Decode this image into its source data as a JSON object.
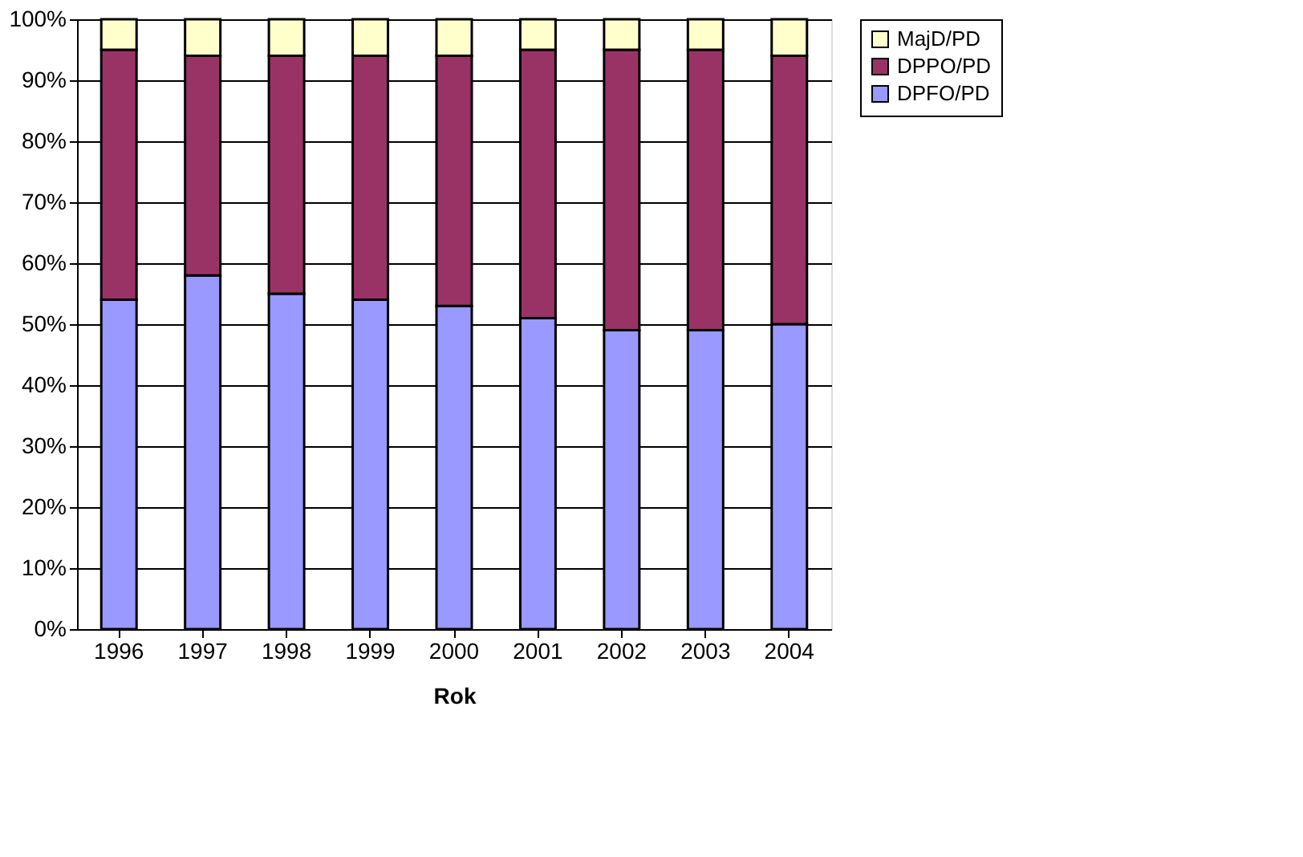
{
  "chart_data": {
    "type": "bar",
    "stacked": true,
    "xlabel": "Rok",
    "categories": [
      "1996",
      "1997",
      "1998",
      "1999",
      "2000",
      "2001",
      "2002",
      "2003",
      "2004"
    ],
    "series": [
      {
        "name": "DPFO/PD",
        "color": "#9999ff",
        "values": [
          54,
          58,
          55,
          54,
          53,
          51,
          49,
          49,
          50
        ]
      },
      {
        "name": "DPPO/PD",
        "color": "#993366",
        "values": [
          41,
          36,
          39,
          40,
          41,
          44,
          46,
          46,
          44
        ]
      },
      {
        "name": "MajD/PD",
        "color": "#ffffcc",
        "values": [
          5,
          6,
          6,
          6,
          6,
          5,
          5,
          5,
          6
        ]
      }
    ],
    "ylim": [
      0,
      100
    ],
    "yticks": [
      {
        "value": 0,
        "label": "0%"
      },
      {
        "value": 10,
        "label": "10%"
      },
      {
        "value": 20,
        "label": "20%"
      },
      {
        "value": 30,
        "label": "30%"
      },
      {
        "value": 40,
        "label": "40%"
      },
      {
        "value": 50,
        "label": "50%"
      },
      {
        "value": 60,
        "label": "60%"
      },
      {
        "value": 70,
        "label": "70%"
      },
      {
        "value": 80,
        "label": "80%"
      },
      {
        "value": 90,
        "label": "90%"
      },
      {
        "value": 100,
        "label": "100%"
      }
    ],
    "grid": "y",
    "legend": "right"
  }
}
